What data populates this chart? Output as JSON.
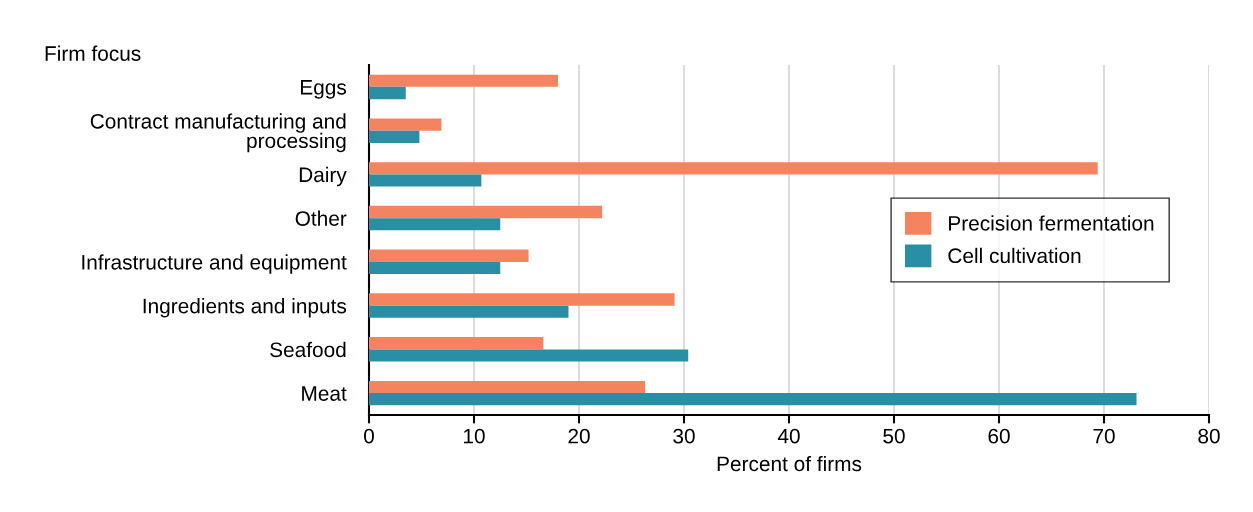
{
  "chart_data": {
    "type": "bar",
    "orientation": "horizontal",
    "ylabel": "Firm focus",
    "xlabel": "Percent of firms",
    "categories": [
      "Eggs",
      "Contract manufacturing and\nprocessing",
      "Dairy",
      "Other",
      "Infrastructure and equipment",
      "Ingredients and inputs",
      "Seafood",
      "Meat"
    ],
    "series": [
      {
        "name": "Precision fermentation",
        "color": "#f4845f",
        "values": [
          18.0,
          6.9,
          69.4,
          22.2,
          15.2,
          29.1,
          16.6,
          26.3
        ]
      },
      {
        "name": "Cell cultivation",
        "color": "#2a8fa5",
        "values": [
          3.5,
          4.8,
          10.7,
          12.5,
          12.5,
          19.0,
          30.4,
          73.1
        ]
      }
    ],
    "xlim": [
      0,
      80
    ],
    "xticks": [
      0,
      10,
      20,
      30,
      40,
      50,
      60,
      70,
      80
    ],
    "grid": "x",
    "legend": "center right"
  }
}
